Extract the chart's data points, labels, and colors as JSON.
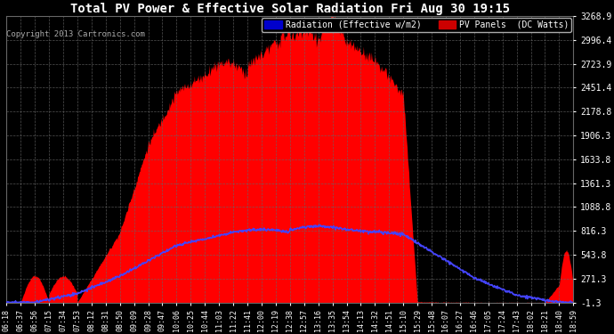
{
  "title": "Total PV Power & Effective Solar Radiation Fri Aug 30 19:15",
  "copyright": "Copyright 2013 Cartronics.com",
  "legend_radiation": "Radiation (Effective w/m2)",
  "legend_pv": "PV Panels  (DC Watts)",
  "bg_color": "#000000",
  "plot_bg": "#000000",
  "yticks": [
    -1.3,
    271.3,
    543.8,
    816.3,
    1088.8,
    1361.3,
    1633.8,
    1906.3,
    2178.8,
    2451.4,
    2723.9,
    2996.4,
    3268.9
  ],
  "ymin": -1.3,
  "ymax": 3268.9,
  "time_labels": [
    "06:18",
    "06:37",
    "06:56",
    "07:15",
    "07:34",
    "07:53",
    "08:12",
    "08:31",
    "08:50",
    "09:09",
    "09:28",
    "09:47",
    "10:06",
    "10:25",
    "10:44",
    "11:03",
    "11:22",
    "11:41",
    "12:00",
    "12:19",
    "12:38",
    "12:57",
    "13:16",
    "13:35",
    "13:54",
    "14:13",
    "14:32",
    "14:51",
    "15:10",
    "15:29",
    "15:48",
    "16:07",
    "16:27",
    "16:46",
    "17:05",
    "17:24",
    "17:43",
    "18:02",
    "18:21",
    "18:40",
    "18:59"
  ],
  "radiation_color": "#4444ff",
  "pv_color": "#ff0000",
  "pv_fill_color": "#ff0000",
  "grid_color": "#666666",
  "title_color": "#ffffff",
  "axis_color": "#ffffff",
  "legend_radiation_bg": "#0000cc",
  "legend_pv_bg": "#cc0000"
}
